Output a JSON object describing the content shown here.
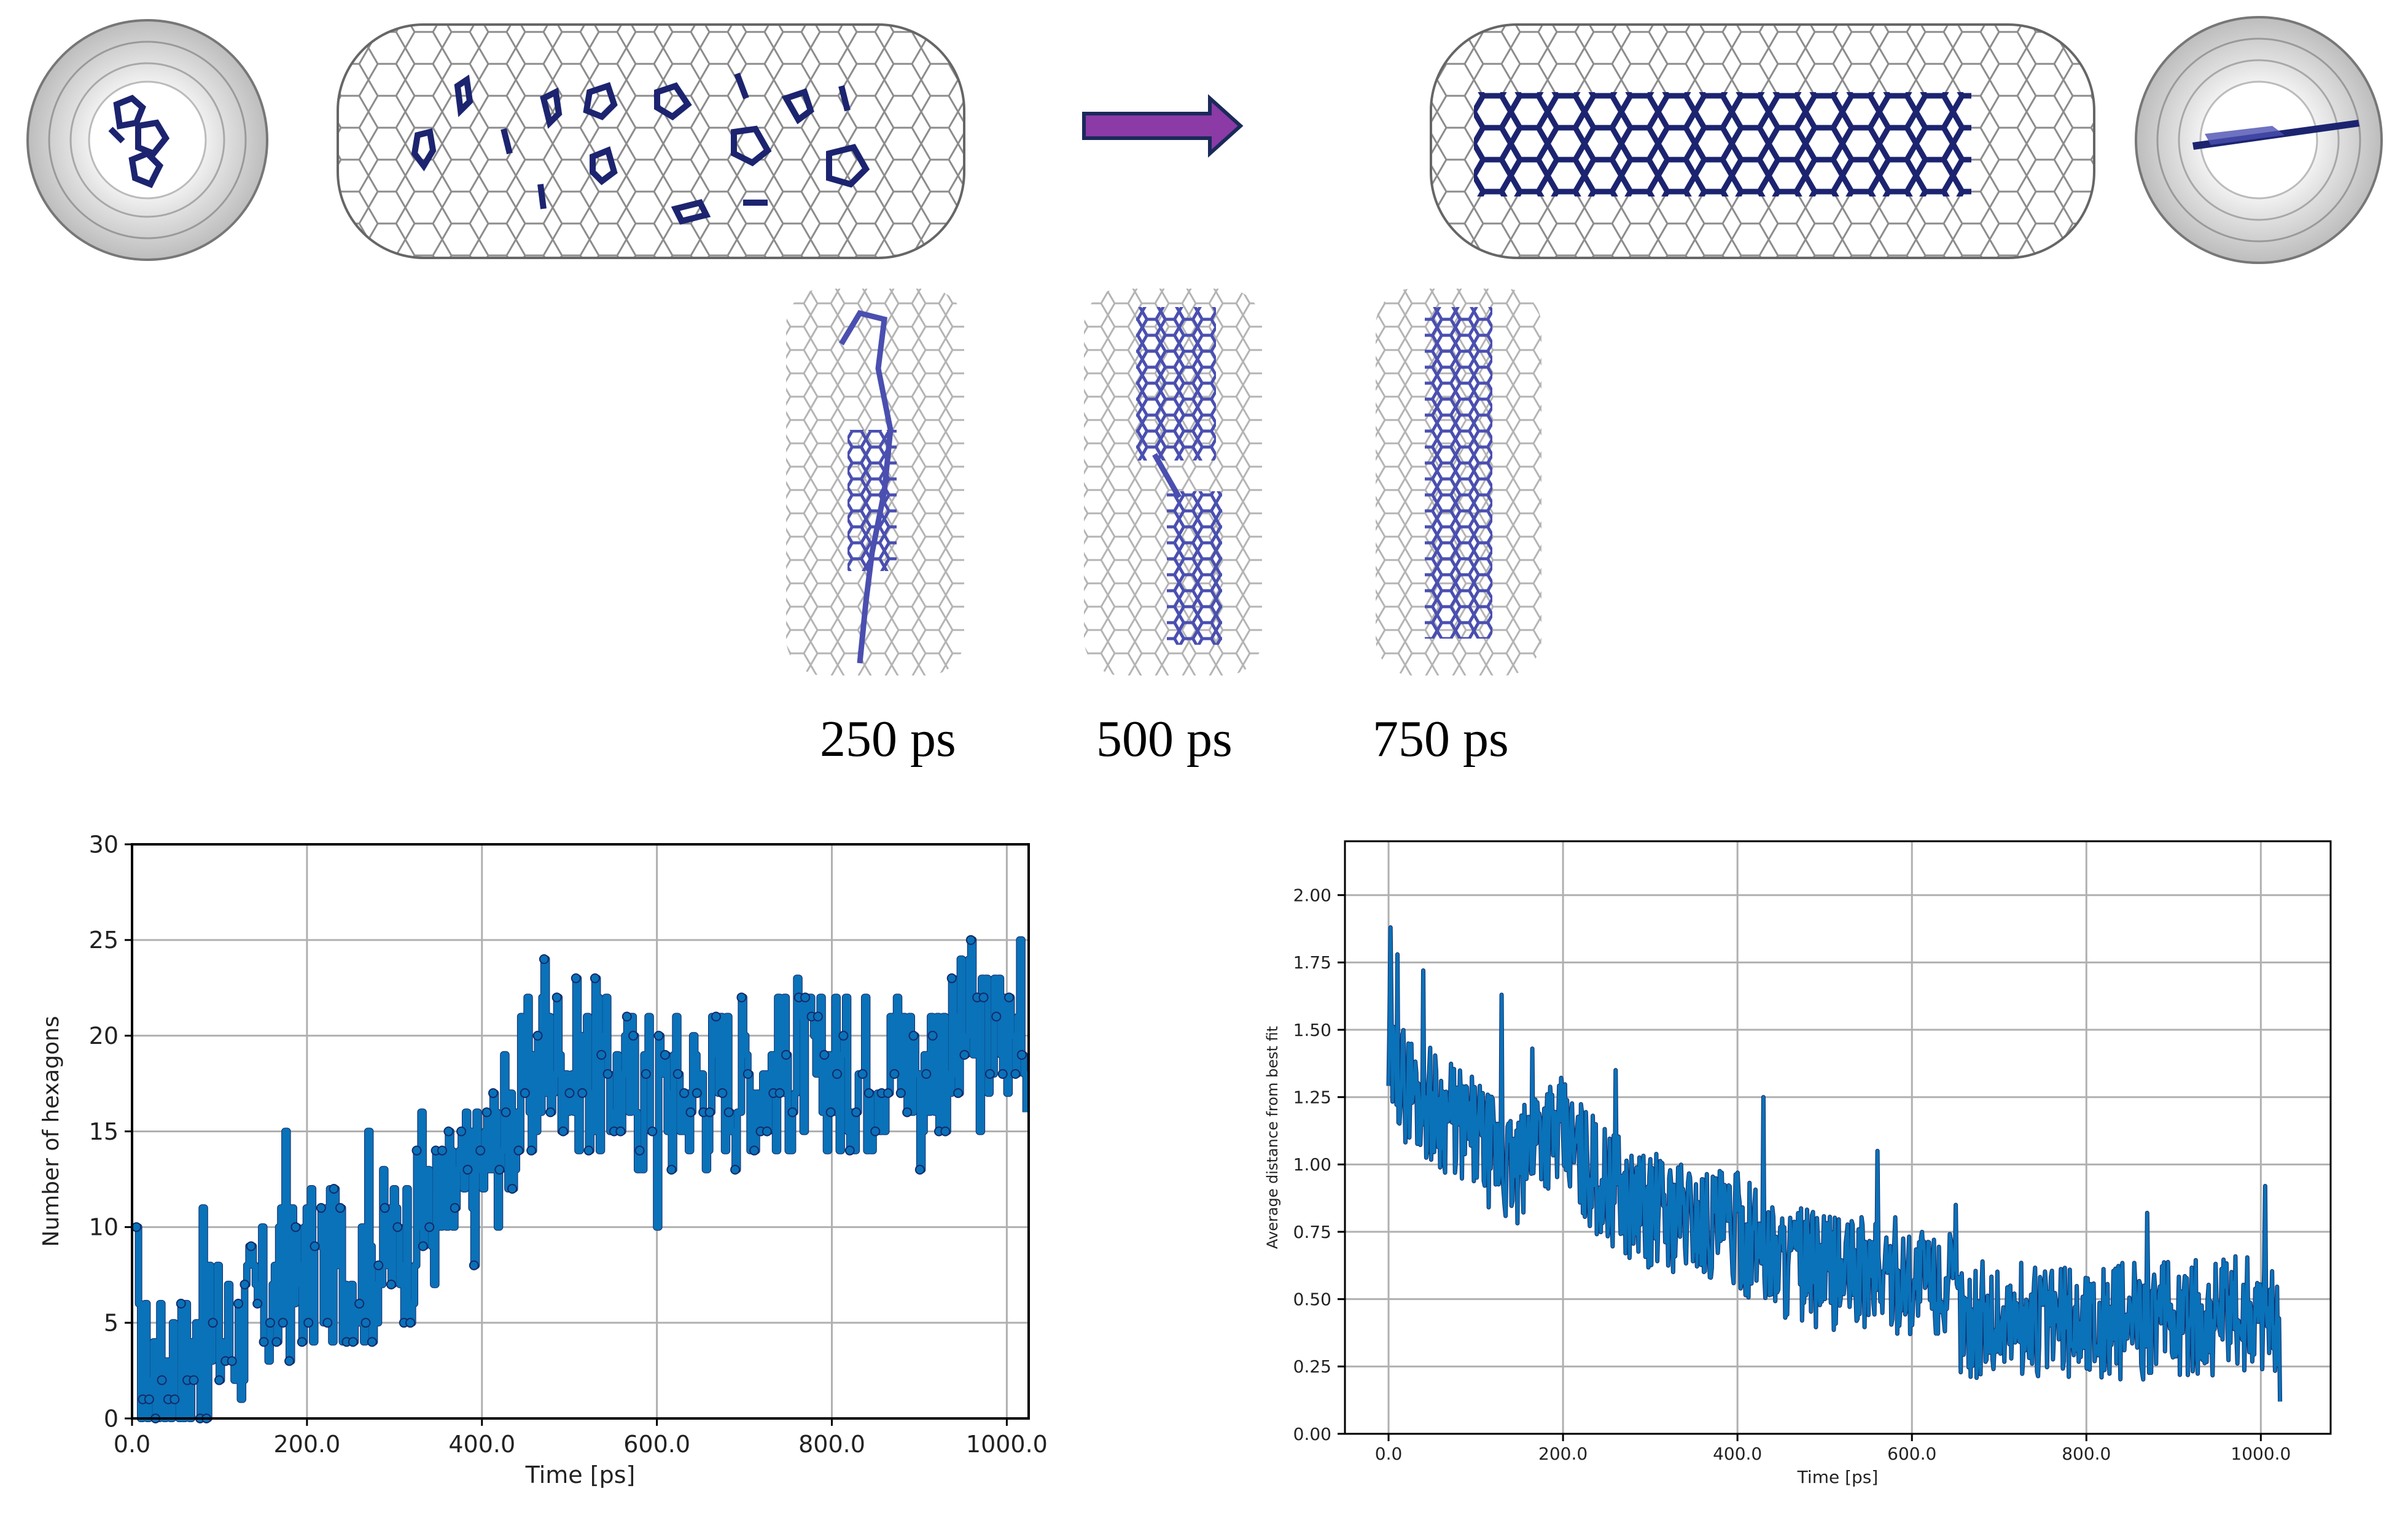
{
  "colors": {
    "tube": "#8c8c8c",
    "tube_light": "#b4b4b4",
    "molecule": "#1c2470",
    "molecule_light": "#4a4fb0",
    "arrow_fill": "#8b3aa6",
    "arrow_stroke": "#1a2a5a",
    "series_fill": "#0a72b8",
    "series_edge": "#122a6a",
    "grid": "#b0b0b0",
    "axis": "#000000"
  },
  "snapshots": {
    "labels": [
      "250 ps",
      "500 ps",
      "750 ps"
    ]
  },
  "chart_data": [
    {
      "type": "line",
      "title": "",
      "xlabel": "Time [ps]",
      "ylabel": "Number of hexagons",
      "xlim": [
        0,
        1025
      ],
      "ylim": [
        0,
        30
      ],
      "xticks": [
        "0.0",
        "200.0",
        "400.0",
        "600.0",
        "800.0",
        "1000.0"
      ],
      "yticks": [
        "0",
        "5",
        "10",
        "15",
        "20",
        "25",
        "30"
      ],
      "grid": true,
      "markers": true,
      "trend": {
        "x": [
          0,
          60,
          100,
          160,
          200,
          260,
          300,
          360,
          400,
          440,
          460,
          480,
          520,
          600,
          700,
          800,
          900,
          1000,
          1025
        ],
        "y": [
          2,
          3,
          4,
          6,
          8,
          8,
          9,
          11,
          13,
          16,
          18,
          19,
          18,
          17,
          18,
          18,
          19,
          20,
          20
        ]
      },
      "spread": 4.5,
      "extremes": {
        "x": [
          5,
          80,
          175,
          270,
          330,
          470,
          530,
          600,
          760,
          900,
          960,
          1015
        ],
        "y": [
          10,
          11,
          15,
          15,
          16,
          24,
          23,
          10,
          23,
          13,
          25,
          25
        ]
      }
    },
    {
      "type": "line",
      "title": "",
      "xlabel": "Time [ps]",
      "ylabel": "Average distance from best fit",
      "xlim": [
        -50,
        1080
      ],
      "ylim": [
        0,
        2.2
      ],
      "xticks": [
        "0.0",
        "200.0",
        "400.0",
        "600.0",
        "800.0",
        "1000.0"
      ],
      "yticks": [
        "0.00",
        "0.25",
        "0.50",
        "0.75",
        "1.00",
        "1.25",
        "1.50",
        "1.75",
        "2.00"
      ],
      "grid": true,
      "markers": false,
      "trend": {
        "x": [
          0,
          20,
          60,
          100,
          150,
          170,
          200,
          240,
          280,
          350,
          400,
          450,
          500,
          550,
          600,
          640,
          660,
          700,
          800,
          900,
          1000,
          1025
        ],
        "y": [
          1.35,
          1.3,
          1.2,
          1.1,
          0.95,
          1.15,
          1.1,
          0.95,
          0.85,
          0.8,
          0.75,
          0.65,
          0.6,
          0.6,
          0.58,
          0.55,
          0.42,
          0.42,
          0.42,
          0.42,
          0.45,
          0.42
        ]
      },
      "spread": 0.22,
      "extremes": {
        "x": [
          2,
          10,
          40,
          130,
          165,
          260,
          430,
          560,
          650,
          870,
          1005,
          1022
        ],
        "y": [
          1.88,
          1.78,
          1.72,
          1.63,
          1.43,
          1.35,
          1.25,
          1.05,
          0.85,
          0.82,
          0.92,
          0.12
        ]
      }
    }
  ]
}
